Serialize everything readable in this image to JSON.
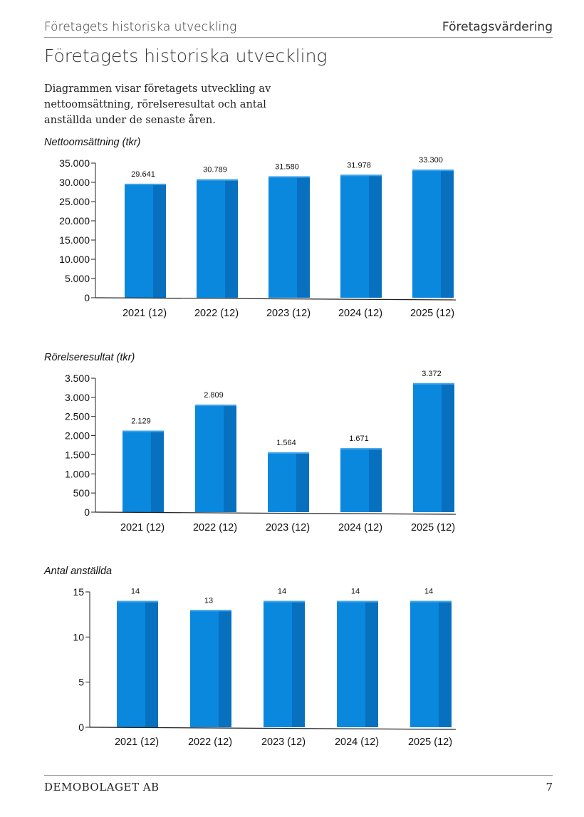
{
  "header": {
    "left": "Företagets historiska utveckling",
    "right": "Företagsvärdering"
  },
  "title": "Företagets historiska utveckling",
  "intro": "Diagrammen visar företagets utveckling av nettoomsättning, rörelseresultat och antal anställda under de senaste åren.",
  "footer": {
    "company": "DEMOBOLAGET AB",
    "page": "7"
  },
  "colors": {
    "bar_front": "#0a88de",
    "bar_side": "#0770bf",
    "bar_top": "#3ea3ea"
  },
  "chart_data": [
    {
      "type": "bar",
      "title": "Nettoomsättning (tkr)",
      "categories": [
        "2021 (12)",
        "2022 (12)",
        "2023 (12)",
        "2024 (12)",
        "2025 (12)"
      ],
      "values": [
        29641,
        30789,
        31580,
        31978,
        33300
      ],
      "value_labels": [
        "29.641",
        "30.789",
        "31.580",
        "31.978",
        "33.300"
      ],
      "yticks": [
        0,
        5000,
        10000,
        15000,
        20000,
        25000,
        30000,
        35000
      ],
      "ytick_labels": [
        "0",
        "5.000",
        "10.000",
        "15.000",
        "20.000",
        "25.000",
        "30.000",
        "35.000"
      ],
      "ylim": [
        0,
        35000
      ]
    },
    {
      "type": "bar",
      "title": "Rörelseresultat (tkr)",
      "categories": [
        "2021 (12)",
        "2022 (12)",
        "2023 (12)",
        "2024 (12)",
        "2025 (12)"
      ],
      "values": [
        2129,
        2809,
        1564,
        1671,
        3372
      ],
      "value_labels": [
        "2.129",
        "2.809",
        "1.564",
        "1.671",
        "3.372"
      ],
      "yticks": [
        0,
        500,
        1000,
        1500,
        2000,
        2500,
        3000,
        3500
      ],
      "ytick_labels": [
        "0",
        "500",
        "1.000",
        "1.500",
        "2.000",
        "2.500",
        "3.000",
        "3.500"
      ],
      "ylim": [
        0,
        3500
      ]
    },
    {
      "type": "bar",
      "title": "Antal anställda",
      "categories": [
        "2021 (12)",
        "2022 (12)",
        "2023 (12)",
        "2024 (12)",
        "2025 (12)"
      ],
      "values": [
        14,
        13,
        14,
        14,
        14
      ],
      "value_labels": [
        "14",
        "13",
        "14",
        "14",
        "14"
      ],
      "yticks": [
        0,
        5,
        10,
        15
      ],
      "ytick_labels": [
        "0",
        "5",
        "10",
        "15"
      ],
      "ylim": [
        0,
        15
      ]
    }
  ]
}
